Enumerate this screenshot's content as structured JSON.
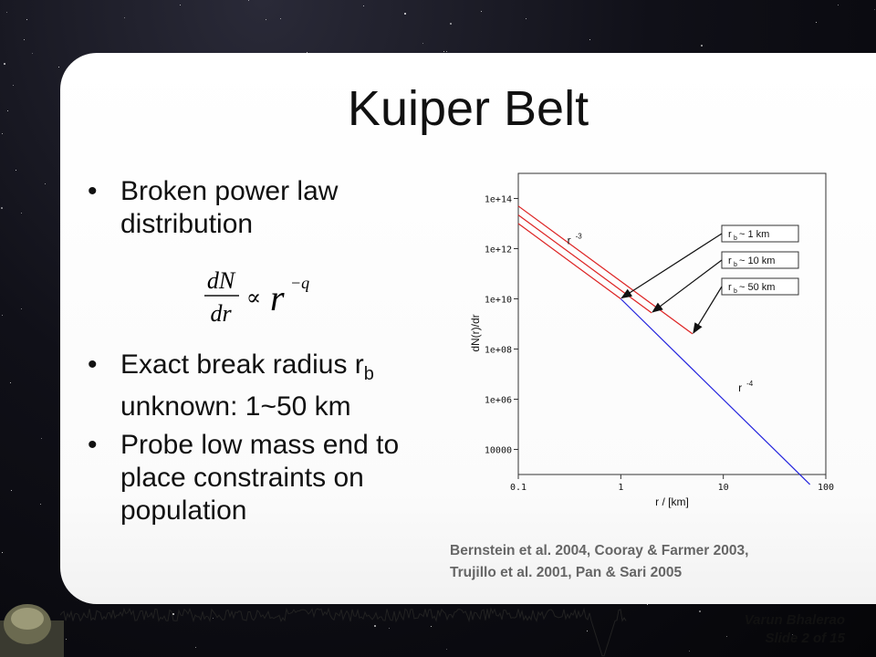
{
  "slide": {
    "title": "Kuiper Belt",
    "bullets": [
      {
        "text": "Broken power law distribution"
      },
      {
        "text": "Exact break radius r",
        "sub": "b",
        "tail": " unknown: 1~50 km"
      },
      {
        "text": "Probe low mass end to place constraints on population"
      }
    ],
    "equation": {
      "lhs_num": "dN",
      "lhs_den": "dr",
      "rel": "∝",
      "base": "r",
      "exp": "−q"
    },
    "citation": [
      "Bernstein et al. 2004, Cooray & Farmer 2003,",
      "Trujillo et al. 2001, Pan & Sari 2005"
    ],
    "author": "Varun Bhalerao",
    "slide_number": "Slide 2 of 15"
  },
  "chart_data": {
    "type": "line",
    "xscale": "log",
    "yscale": "log",
    "xlim": [
      0.1,
      100
    ],
    "ylim": [
      1000,
      1000000000000000.0
    ],
    "xlabel": "r / [km]",
    "ylabel": "dN(r)/dr",
    "xticks": [
      0.1,
      1,
      10,
      100
    ],
    "xtick_labels": [
      "0.1",
      "1",
      "10",
      "100"
    ],
    "yticks": [
      10000,
      1000000.0,
      100000000.0,
      10000000000.0,
      1000000000000.0,
      100000000000000.0
    ],
    "ytick_labels": [
      "10000",
      "1e+06",
      "1e+08",
      "1e+10",
      "1e+12",
      "1e+14"
    ],
    "series": [
      {
        "color": "#dd2222",
        "points": [
          [
            0.1,
            10000000000000.0
          ],
          [
            1,
            10000000000.0
          ]
        ]
      },
      {
        "color": "#dd2222",
        "points": [
          [
            0.1,
            22000000000000.0
          ],
          [
            2,
            2750000000.0
          ]
        ]
      },
      {
        "color": "#dd2222",
        "points": [
          [
            0.1,
            50000000000000.0
          ],
          [
            5,
            400000000.0
          ]
        ]
      },
      {
        "color": "#2222dd",
        "points": [
          [
            1,
            10000000000.0
          ],
          [
            70,
            400.0
          ]
        ]
      }
    ],
    "slope_labels": [
      {
        "text": "r",
        "sup": "-3",
        "x": 0.3,
        "y": 1500000000000.0
      },
      {
        "text": "r",
        "sup": "-4",
        "x": 14,
        "y": 2000000.0
      }
    ],
    "annotations": [
      {
        "text": "r",
        "sub": "b",
        "tail": " ~ 1 km",
        "target": [
          1,
          10000000000.0
        ]
      },
      {
        "text": "r",
        "sub": "b",
        "tail": " ~ 10 km",
        "target": [
          2,
          2750000000.0
        ]
      },
      {
        "text": "r",
        "sub": "b",
        "tail": " ~ 50 km",
        "target": [
          5,
          400000000.0
        ]
      }
    ],
    "grid": false
  }
}
